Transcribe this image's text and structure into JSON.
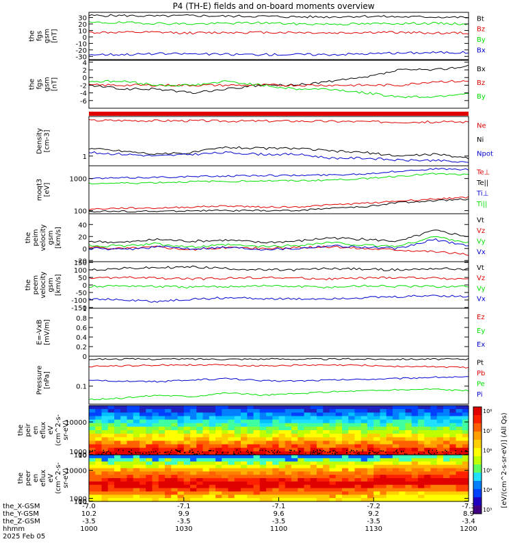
{
  "title": "P4 (TH-E) fields and on-board moments overview",
  "colors": {
    "black": "#000000",
    "red": "#e00000",
    "green": "#00e000",
    "blue": "#0000d0"
  },
  "chart_data": [
    {
      "type": "line",
      "ylabel": [
        "the",
        "fgs",
        "gsm",
        "[nT]"
      ],
      "ylim": [
        -35,
        38
      ],
      "yticks": [
        30,
        20,
        10,
        0,
        -10,
        -20,
        -30
      ],
      "series": [
        {
          "name": "Bt",
          "color": "#000000",
          "values": [
            33,
            33,
            32,
            33,
            32,
            32,
            31,
            31,
            32,
            31,
            31,
            30
          ]
        },
        {
          "name": "Bz",
          "color": "#e00000",
          "values": [
            7,
            7,
            7,
            6,
            7,
            7,
            7,
            6,
            7,
            7,
            6,
            6
          ]
        },
        {
          "name": "By",
          "color": "#00e000",
          "values": [
            22,
            22,
            21,
            20,
            21,
            22,
            20,
            20,
            20,
            21,
            21,
            20
          ]
        },
        {
          "name": "Bx",
          "color": "#0000d0",
          "values": [
            -27,
            -27,
            -26,
            -26,
            -27,
            -27,
            -27,
            -27,
            -26,
            -25,
            -24,
            -24
          ]
        }
      ]
    },
    {
      "type": "line",
      "ylabel": [
        "the",
        "fgs",
        "gsm",
        "[nT]"
      ],
      "ylim": [
        -8,
        4.5
      ],
      "yticks": [
        4,
        2,
        0,
        -2,
        -4,
        -6
      ],
      "series": [
        {
          "name": "Bx",
          "color": "#000000",
          "values": [
            -2,
            -3,
            -3,
            -4,
            -3,
            -2,
            -2,
            -1,
            0,
            2,
            2,
            3
          ]
        },
        {
          "name": "Bz",
          "color": "#e00000",
          "values": [
            -2,
            -2,
            -2,
            -2,
            -2,
            -2,
            -2,
            -2,
            -2,
            -2,
            -1,
            -1
          ]
        },
        {
          "name": "By",
          "color": "#00e000",
          "values": [
            -1,
            -1,
            -2,
            -2,
            -1,
            -2,
            -3,
            -3,
            -4,
            -5,
            -5,
            -4
          ]
        }
      ]
    },
    {
      "type": "line",
      "yscale": "log",
      "ylabel": [
        "Density",
        "[cm-3]"
      ],
      "ylim": [
        0.6,
        8
      ],
      "yticks": [
        1
      ],
      "series": [
        {
          "name": "Ne",
          "color": "#e00000",
          "values": [
            6.5,
            6.5,
            6.4,
            6.4,
            6.3,
            6.3,
            6.3,
            6.2,
            6.1,
            6,
            6,
            6
          ]
        },
        {
          "name": "Ni",
          "color": "#000000",
          "values": [
            1.5,
            1.3,
            1.1,
            1.2,
            1.6,
            1.5,
            1.5,
            1.3,
            1.2,
            1.0,
            1.1,
            0.9
          ]
        },
        {
          "name": "Npot",
          "color": "#0000d0",
          "values": [
            1.2,
            1.1,
            1.0,
            1.1,
            1.2,
            1.1,
            1.1,
            0.9,
            0.9,
            0.8,
            0.8,
            0.7
          ]
        }
      ]
    },
    {
      "type": "line",
      "yscale": "log",
      "ylabel": [
        "moqt3",
        "[eV]"
      ],
      "ylim": [
        80,
        2500
      ],
      "yticks": [
        1000,
        100
      ],
      "series": [
        {
          "name": "Te⊥",
          "color": "#e00000",
          "values": [
            110,
            120,
            120,
            130,
            140,
            130,
            130,
            150,
            170,
            200,
            230,
            260
          ]
        },
        {
          "name": "Te||",
          "color": "#000000",
          "values": [
            95,
            95,
            95,
            100,
            100,
            100,
            100,
            120,
            130,
            180,
            200,
            230
          ]
        },
        {
          "name": "Ti⊥",
          "color": "#0000d0",
          "values": [
            1000,
            1050,
            1100,
            1150,
            1200,
            1250,
            1250,
            1300,
            1400,
            1700,
            2000,
            1900
          ]
        },
        {
          "name": "Ti||",
          "color": "#00e000",
          "values": [
            700,
            720,
            750,
            800,
            820,
            850,
            850,
            900,
            1000,
            1200,
            1400,
            1300
          ]
        }
      ]
    },
    {
      "type": "line",
      "ylabel": [
        "the",
        "peim",
        "velocity",
        "gsm",
        "[km/s]"
      ],
      "ylim": [
        -22,
        58
      ],
      "yticks": [
        40,
        20,
        0,
        -20
      ],
      "series": [
        {
          "name": "Vt",
          "color": "#000000",
          "values": [
            12,
            10,
            15,
            12,
            14,
            10,
            12,
            18,
            15,
            12,
            30,
            20
          ]
        },
        {
          "name": "Vz",
          "color": "#e00000",
          "values": [
            2,
            0,
            3,
            -2,
            2,
            0,
            1,
            3,
            0,
            -2,
            -5,
            -10
          ]
        },
        {
          "name": "Vy",
          "color": "#00e000",
          "values": [
            5,
            4,
            8,
            2,
            6,
            3,
            5,
            10,
            5,
            4,
            20,
            10
          ]
        },
        {
          "name": "Vx",
          "color": "#0000d0",
          "values": [
            0,
            -2,
            3,
            0,
            2,
            -1,
            0,
            5,
            2,
            0,
            15,
            5
          ]
        }
      ]
    },
    {
      "type": "line",
      "ylabel": [
        "the",
        "peem",
        "velocity",
        "gsm",
        "[km/s]"
      ],
      "ylim": [
        -155,
        155
      ],
      "yticks": [
        150,
        100,
        50,
        0,
        -50,
        -100,
        -150
      ],
      "series": [
        {
          "name": "Vt",
          "color": "#000000",
          "values": [
            100,
            110,
            115,
            120,
            110,
            100,
            100,
            110,
            105,
            100,
            110,
            105
          ]
        },
        {
          "name": "Vz",
          "color": "#e00000",
          "values": [
            45,
            50,
            45,
            40,
            45,
            50,
            45,
            40,
            45,
            50,
            45,
            40
          ]
        },
        {
          "name": "Vy",
          "color": "#00e000",
          "values": [
            -10,
            -5,
            -10,
            -15,
            -10,
            -5,
            -10,
            -15,
            -5,
            -10,
            -10,
            -10
          ]
        },
        {
          "name": "Vx",
          "color": "#0000d0",
          "values": [
            -90,
            -100,
            -110,
            -95,
            -85,
            -90,
            -95,
            -90,
            -85,
            -80,
            -70,
            -80
          ]
        }
      ]
    },
    {
      "type": "line",
      "ylabel": [
        "E=-VxB",
        "[mV/m]"
      ],
      "ylim": [
        0,
        1
      ],
      "yticks": [
        1.0,
        0.8,
        0.6,
        0.4,
        0.2,
        0.0
      ],
      "series": [
        {
          "name": "Ez",
          "color": "#e00000",
          "values": []
        },
        {
          "name": "Ey",
          "color": "#00e000",
          "values": []
        },
        {
          "name": "Ex",
          "color": "#0000d0",
          "values": []
        }
      ]
    },
    {
      "type": "line",
      "yscale": "log",
      "ylabel": [
        "Pressure",
        "[nPa]"
      ],
      "ylim": [
        0.025,
        1.0
      ],
      "yticks": [
        0.1
      ],
      "series": [
        {
          "name": "Pt",
          "color": "#000000",
          "values": [
            0.8,
            0.8,
            0.8,
            0.8,
            0.8,
            0.8,
            0.8,
            0.8,
            0.8,
            0.8,
            0.8,
            0.8
          ]
        },
        {
          "name": "Pb",
          "color": "#e00000",
          "values": [
            0.45,
            0.48,
            0.5,
            0.52,
            0.5,
            0.48,
            0.5,
            0.5,
            0.5,
            0.45,
            0.45,
            0.42
          ]
        },
        {
          "name": "Pe",
          "color": "#00e000",
          "values": [
            0.035,
            0.04,
            0.05,
            0.045,
            0.06,
            0.05,
            0.055,
            0.065,
            0.07,
            0.075,
            0.08,
            0.07
          ]
        },
        {
          "name": "Pi",
          "color": "#0000d0",
          "values": [
            0.15,
            0.15,
            0.14,
            0.16,
            0.18,
            0.15,
            0.15,
            0.16,
            0.17,
            0.18,
            0.2,
            0.2
          ]
        }
      ]
    },
    {
      "type": "heatmap",
      "ylabel": [
        "the",
        "peir",
        "en",
        "eflux",
        "eV",
        "(cm^2-s-",
        "sr-eV)"
      ],
      "ylim": [
        5,
        15000
      ],
      "yticks": [
        10000,
        1000,
        100,
        10
      ]
    },
    {
      "type": "heatmap",
      "ylabel": [
        "the",
        "peer",
        "en",
        "eflux",
        "eV",
        "(cm^2-s-",
        "sr-eV)"
      ],
      "ylim": [
        5,
        15000
      ],
      "yticks": [
        10000,
        1000,
        100,
        10
      ]
    }
  ],
  "colorbar": {
    "label": "[eV/(cm^2-s-sr-eV)] (All Qs)",
    "ticks": [
      "10⁸",
      "10⁷",
      "10⁶",
      "10⁵",
      "10⁴",
      "10³"
    ]
  },
  "xaxis": {
    "rows": [
      {
        "label": "the_X-GSM",
        "values": [
          "-7.0",
          "-7.1",
          "-7.1",
          "-7.2",
          "-7.3"
        ]
      },
      {
        "label": "the_Y-GSM",
        "values": [
          "10.2",
          "9.9",
          "9.6",
          "9.2",
          "8.9"
        ]
      },
      {
        "label": "the_Z-GSM",
        "values": [
          "-3.5",
          "-3.5",
          "-3.5",
          "-3.5",
          "-3.4"
        ]
      },
      {
        "label": "hhmm",
        "values": [
          "1000",
          "1030",
          "1100",
          "1130",
          "1200"
        ]
      }
    ],
    "date": "2025 Feb 05"
  }
}
